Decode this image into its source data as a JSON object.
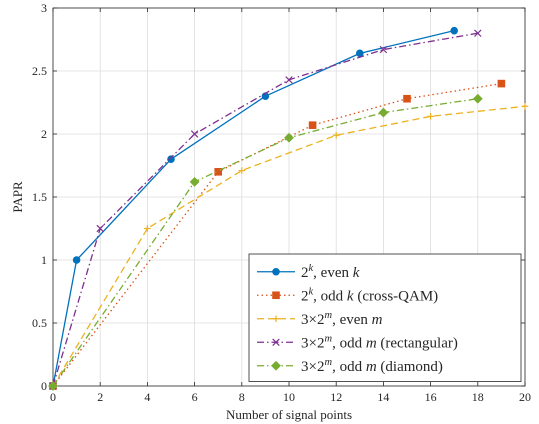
{
  "chart_data": {
    "type": "line",
    "title": "",
    "xlabel": "Number of signal points",
    "ylabel": "PAPR",
    "xlim": [
      0,
      20
    ],
    "ylim": [
      0,
      3
    ],
    "xticks": [
      0,
      2,
      4,
      6,
      8,
      10,
      12,
      14,
      16,
      18,
      20
    ],
    "yticks": [
      0,
      0.5,
      1,
      1.5,
      2,
      2.5,
      3
    ],
    "xtick_labels": [
      "0",
      "2",
      "4",
      "6",
      "8",
      "10",
      "12",
      "14",
      "16",
      "18",
      "20"
    ],
    "ytick_labels": [
      "0",
      "0.5",
      "1",
      "1.5",
      "2",
      "2.5",
      "3"
    ],
    "grid": true,
    "legend_position": "bottom-right",
    "series": [
      {
        "name": "2^k, even k",
        "legend": {
          "pre": "2",
          "sup": "k",
          "mid": ", even ",
          "ital": "k",
          "post": ""
        },
        "color": "#0072BD",
        "linestyle": "solid",
        "marker": "circle",
        "x": [
          0,
          1,
          5,
          9,
          13,
          17
        ],
        "y": [
          0,
          1.0,
          1.8,
          2.3,
          2.64,
          2.82
        ]
      },
      {
        "name": "2^k, odd k (cross-QAM)",
        "legend": {
          "pre": "2",
          "sup": "k",
          "mid": ", odd ",
          "ital": "k",
          "post": " (cross-QAM)"
        },
        "color": "#D95319",
        "linestyle": "dotted",
        "marker": "square",
        "x": [
          0,
          7,
          11,
          15,
          19
        ],
        "y": [
          0,
          1.7,
          2.07,
          2.28,
          2.4
        ]
      },
      {
        "name": "3×2^m, even m",
        "legend": {
          "pre": "3×2",
          "sup": "m",
          "mid": ", even ",
          "ital": "m",
          "post": ""
        },
        "color": "#EDB120",
        "linestyle": "dashed",
        "marker": "plus",
        "x": [
          0,
          4,
          8,
          12,
          16,
          20
        ],
        "y": [
          0,
          1.25,
          1.71,
          1.99,
          2.14,
          2.22
        ]
      },
      {
        "name": "3×2^m, odd m (rectangular)",
        "legend": {
          "pre": "3×2",
          "sup": "m",
          "mid": ", odd ",
          "ital": "m",
          "post": " (rectangular)"
        },
        "color": "#7E2F8E",
        "linestyle": "dashdot",
        "marker": "x",
        "x": [
          0,
          2,
          6,
          10,
          14,
          18
        ],
        "y": [
          0,
          1.25,
          2.0,
          2.43,
          2.67,
          2.8
        ]
      },
      {
        "name": "3×2^m, odd m (diamond)",
        "legend": {
          "pre": "3×2",
          "sup": "m",
          "mid": ", odd ",
          "ital": "m",
          "post": " (diamond)"
        },
        "color": "#77AC30",
        "linestyle": "dashdot",
        "marker": "diamond",
        "x": [
          0,
          6,
          10,
          14,
          18
        ],
        "y": [
          0,
          1.62,
          1.97,
          2.17,
          2.28
        ]
      }
    ]
  }
}
